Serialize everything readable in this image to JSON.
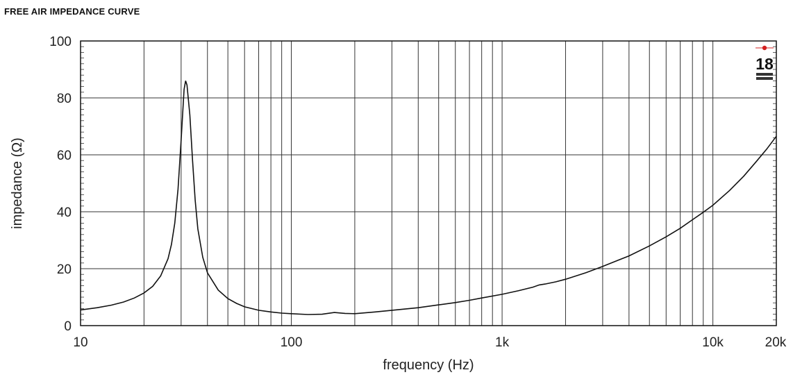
{
  "chart_data": {
    "type": "line",
    "title": "FREE AIR IMPEDANCE CURVE",
    "xlabel": "frequency (Hz)",
    "ylabel": "impedance (Ω)",
    "x_scale": "log",
    "xlim": [
      10,
      20000
    ],
    "ylim": [
      0,
      100
    ],
    "grid": true,
    "x_ticks": [
      {
        "value": 10,
        "label": "10"
      },
      {
        "value": 100,
        "label": "100"
      },
      {
        "value": 1000,
        "label": "1k"
      },
      {
        "value": 10000,
        "label": "10k"
      },
      {
        "value": 20000,
        "label": "20k"
      }
    ],
    "y_ticks": [
      {
        "value": 0,
        "label": "0"
      },
      {
        "value": 20,
        "label": "20"
      },
      {
        "value": 40,
        "label": "40"
      },
      {
        "value": 60,
        "label": "60"
      },
      {
        "value": 80,
        "label": "80"
      },
      {
        "value": 100,
        "label": "100"
      }
    ],
    "series": [
      {
        "points": [
          [
            10,
            5.5
          ],
          [
            12,
            6.3
          ],
          [
            14,
            7.2
          ],
          [
            16,
            8.3
          ],
          [
            18,
            9.7
          ],
          [
            20,
            11.5
          ],
          [
            22,
            13.8
          ],
          [
            24,
            17.5
          ],
          [
            26,
            23.5
          ],
          [
            27,
            28.5
          ],
          [
            28,
            36
          ],
          [
            29,
            48
          ],
          [
            30,
            65
          ],
          [
            31,
            83
          ],
          [
            31.5,
            86
          ],
          [
            32,
            84.5
          ],
          [
            33,
            74
          ],
          [
            34,
            58
          ],
          [
            35,
            44
          ],
          [
            36,
            34
          ],
          [
            38,
            24
          ],
          [
            40,
            18.5
          ],
          [
            45,
            12.5
          ],
          [
            50,
            9.5
          ],
          [
            55,
            7.8
          ],
          [
            60,
            6.6
          ],
          [
            70,
            5.4
          ],
          [
            80,
            4.8
          ],
          [
            90,
            4.4
          ],
          [
            100,
            4.2
          ],
          [
            120,
            3.9
          ],
          [
            140,
            4.0
          ],
          [
            160,
            4.6
          ],
          [
            180,
            4.3
          ],
          [
            200,
            4.2
          ],
          [
            250,
            4.8
          ],
          [
            300,
            5.4
          ],
          [
            400,
            6.3
          ],
          [
            500,
            7.3
          ],
          [
            600,
            8.1
          ],
          [
            700,
            8.9
          ],
          [
            800,
            9.7
          ],
          [
            1000,
            11.0
          ],
          [
            1200,
            12.3
          ],
          [
            1400,
            13.5
          ],
          [
            1500,
            14.3
          ],
          [
            1600,
            14.6
          ],
          [
            1800,
            15.4
          ],
          [
            2000,
            16.3
          ],
          [
            2500,
            18.6
          ],
          [
            3000,
            20.8
          ],
          [
            4000,
            24.5
          ],
          [
            5000,
            28.0
          ],
          [
            6000,
            31.2
          ],
          [
            7000,
            34.2
          ],
          [
            8000,
            37.2
          ],
          [
            9000,
            39.8
          ],
          [
            10000,
            42.3
          ],
          [
            12000,
            47.5
          ],
          [
            14000,
            52.5
          ],
          [
            16000,
            57.5
          ],
          [
            18000,
            62
          ],
          [
            20000,
            66.5
          ]
        ]
      }
    ]
  },
  "logo": {
    "text": "18",
    "subtext": "18 SOUND",
    "accent_color": "#d42020"
  }
}
